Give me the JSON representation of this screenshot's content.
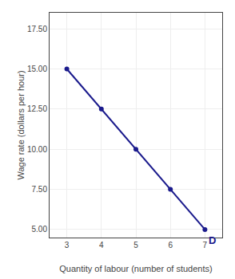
{
  "chart_data": {
    "type": "line",
    "xlabel": "Quantity of labour (number of students)",
    "ylabel": "Wage rate (dollars per hour)",
    "x": [
      3,
      4,
      5,
      6,
      7
    ],
    "values": [
      15.0,
      12.5,
      10.0,
      7.5,
      5.0
    ],
    "color": "#1a1a8c",
    "marker": "circle",
    "xlim": [
      2.5,
      7.5
    ],
    "ylim": [
      4.5,
      18.5
    ],
    "xticks": [
      3,
      4,
      5,
      6,
      7
    ],
    "yticks": [
      {
        "value": 5,
        "label": "5.00"
      },
      {
        "value": 7.5,
        "label": "7.50"
      },
      {
        "value": 10,
        "label": "10.00"
      },
      {
        "value": 12.5,
        "label": "12.50"
      },
      {
        "value": 15,
        "label": "15.00"
      },
      {
        "value": 17.5,
        "label": "17.50"
      }
    ],
    "grid": true,
    "annotations": [
      {
        "text": "D",
        "x": 7,
        "y": 5
      }
    ]
  }
}
